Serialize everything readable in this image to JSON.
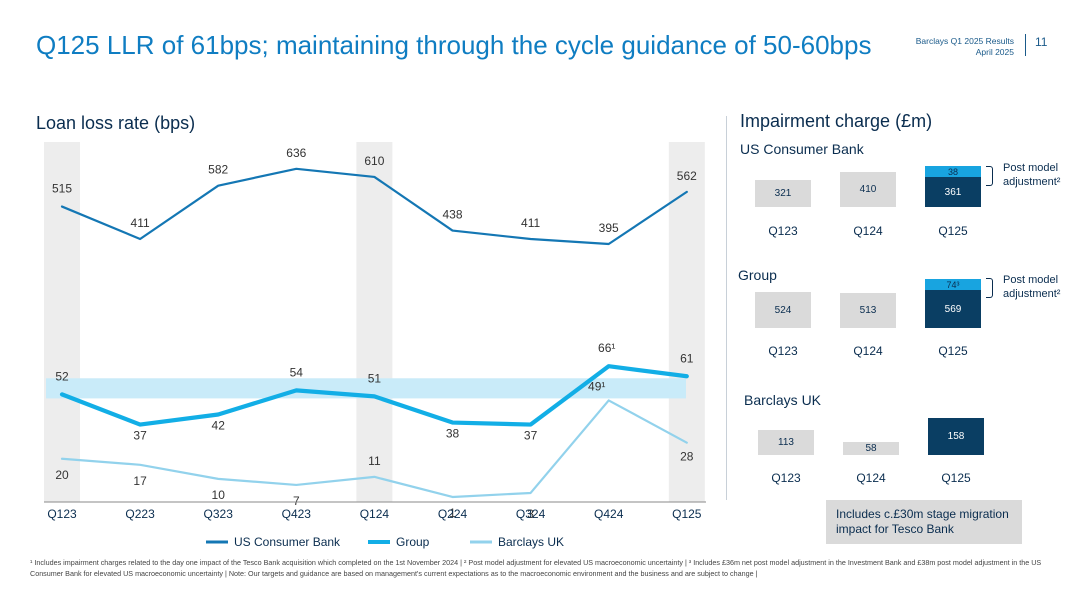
{
  "header": {
    "title": "Q125 LLR of 61bps; maintaining through the cycle guidance of 50-60bps",
    "brand_line": "Barclays Q1 2025 Results",
    "date_line": "April 2025",
    "page_number": "11"
  },
  "colors": {
    "us_consumer_bank": "#1477b4",
    "group": "#12aee6",
    "barclays_uk": "#92d2ec",
    "guidance_band": "#c9ebf9",
    "highlight_column": "#ededed"
  },
  "chart_data": {
    "type": "line",
    "title": "Loan loss rate (bps)",
    "categories": [
      "Q123",
      "Q223",
      "Q323",
      "Q423",
      "Q124",
      "Q224",
      "Q324",
      "Q424",
      "Q125"
    ],
    "highlighted_categories": [
      "Q123",
      "Q124",
      "Q125"
    ],
    "guidance_band": [
      50,
      60
    ],
    "series": [
      {
        "name": "US Consumer Bank",
        "values": [
          515,
          411,
          582,
          636,
          610,
          438,
          411,
          395,
          562
        ],
        "labels": [
          "515",
          "411",
          "582",
          "636",
          "610",
          "438",
          "411",
          "395",
          "562"
        ]
      },
      {
        "name": "Group",
        "values": [
          52,
          37,
          42,
          54,
          51,
          38,
          37,
          66,
          61
        ],
        "labels": [
          "52",
          "37",
          "42",
          "54",
          "51",
          "38",
          "37",
          "66¹",
          "61"
        ]
      },
      {
        "name": "Barclays UK",
        "values": [
          20,
          17,
          10,
          7,
          11,
          1,
          3,
          49,
          28
        ],
        "labels": [
          "20",
          "17",
          "10",
          "7",
          "11",
          "1",
          "3",
          "49¹",
          "28"
        ]
      }
    ],
    "legend": [
      "US Consumer Bank",
      "Group",
      "Barclays UK"
    ],
    "legend_position": "bottom"
  },
  "impairment": {
    "title": "Impairment charge (£m)",
    "us": {
      "title": "US Consumer Bank",
      "quarters": [
        "Q123",
        "Q124",
        "Q125"
      ],
      "values": [
        "321",
        "410",
        "361"
      ],
      "pma": "38",
      "pma_label_1": "Post model",
      "pma_label_2": "adjustment²"
    },
    "group": {
      "title": "Group",
      "quarters": [
        "Q123",
        "Q124",
        "Q125"
      ],
      "values": [
        "524",
        "513",
        "569"
      ],
      "pma": "74³",
      "pma_label_1": "Post model",
      "pma_label_2": "adjustment²"
    },
    "uk": {
      "title": "Barclays UK",
      "quarters": [
        "Q123",
        "Q124",
        "Q125"
      ],
      "values": [
        "113",
        "58",
        "158"
      ],
      "note_1": "Includes c.£30m stage migration",
      "note_2": "impact for Tesco Bank"
    }
  },
  "footer": "¹ Includes impairment charges related to the day one impact of the Tesco Bank acquisition which completed on the 1st November 2024 | ² Post model adjustment for elevated US macroeconomic uncertainty | ³ Includes £36m net post model adjustment in the Investment Bank and £38m post model adjustment in the US Consumer Bank for elevated US macroeconomic uncertainty | Note: Our targets and guidance are based on management's current expectations as to the macroeconomic environment and the business and are subject to change |"
}
